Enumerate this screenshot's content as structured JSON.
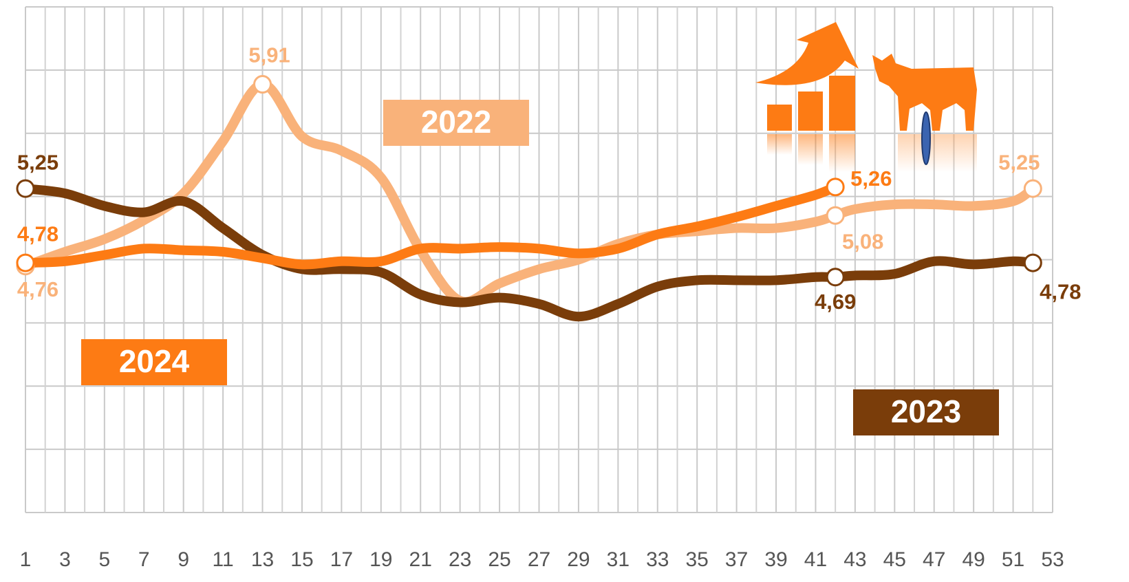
{
  "chart_data": {
    "type": "line",
    "x": [
      1,
      3,
      5,
      7,
      9,
      11,
      13,
      15,
      17,
      19,
      21,
      23,
      25,
      27,
      29,
      31,
      33,
      35,
      37,
      39,
      41,
      42,
      43,
      45,
      47,
      49,
      51,
      52
    ],
    "xlim": [
      1,
      53
    ],
    "xticks": [
      1,
      3,
      5,
      7,
      9,
      11,
      13,
      15,
      17,
      19,
      21,
      23,
      25,
      27,
      29,
      31,
      33,
      35,
      37,
      39,
      41,
      43,
      45,
      47,
      49,
      51,
      53
    ],
    "ylim": [
      3.2,
      6.4
    ],
    "yticks": [
      3.2,
      3.6,
      4.0,
      4.4,
      4.8,
      5.2,
      5.6,
      6.0,
      6.4
    ],
    "grid": true,
    "series": [
      {
        "name": "2022",
        "color": "#f9b27a",
        "values": [
          4.76,
          4.85,
          4.93,
          5.05,
          5.22,
          5.55,
          5.91,
          5.58,
          5.49,
          5.32,
          4.86,
          4.54,
          4.65,
          4.74,
          4.8,
          4.9,
          4.96,
          4.98,
          5.0,
          5.0,
          5.04,
          5.08,
          5.12,
          5.15,
          5.15,
          5.14,
          5.17,
          5.25
        ],
        "value_labels": [
          "4,76",
          null,
          null,
          null,
          null,
          null,
          "5,91",
          null,
          null,
          null,
          null,
          null,
          null,
          null,
          null,
          null,
          null,
          null,
          null,
          null,
          null,
          "5,08",
          null,
          null,
          null,
          null,
          null,
          "5,25"
        ]
      },
      {
        "name": "2023",
        "color": "#7a3d0a",
        "values": [
          5.25,
          5.22,
          5.14,
          5.1,
          5.17,
          5.0,
          4.83,
          4.74,
          4.74,
          4.72,
          4.58,
          4.53,
          4.56,
          4.52,
          4.44,
          4.52,
          4.63,
          4.67,
          4.67,
          4.67,
          4.69,
          4.69,
          4.7,
          4.71,
          4.79,
          4.77,
          4.79,
          4.78
        ],
        "value_labels": [
          "5,25",
          null,
          null,
          null,
          null,
          null,
          null,
          null,
          null,
          null,
          null,
          null,
          null,
          null,
          null,
          null,
          null,
          null,
          null,
          null,
          null,
          "4,69",
          null,
          null,
          null,
          null,
          null,
          "4,78"
        ]
      },
      {
        "name": "2024",
        "color": "#fd7b14",
        "values": [
          4.78,
          4.79,
          4.83,
          4.87,
          4.86,
          4.85,
          4.81,
          4.77,
          4.79,
          4.79,
          4.87,
          4.87,
          4.88,
          4.87,
          4.84,
          4.87,
          4.96,
          5.01,
          5.07,
          5.14,
          5.21,
          5.26,
          null,
          null,
          null,
          null,
          null,
          null
        ],
        "value_labels": [
          "4,78",
          null,
          null,
          null,
          null,
          null,
          null,
          null,
          null,
          null,
          null,
          null,
          null,
          null,
          null,
          null,
          null,
          null,
          null,
          null,
          null,
          "5,26",
          null,
          null,
          null,
          null,
          null,
          null
        ]
      }
    ]
  }
}
